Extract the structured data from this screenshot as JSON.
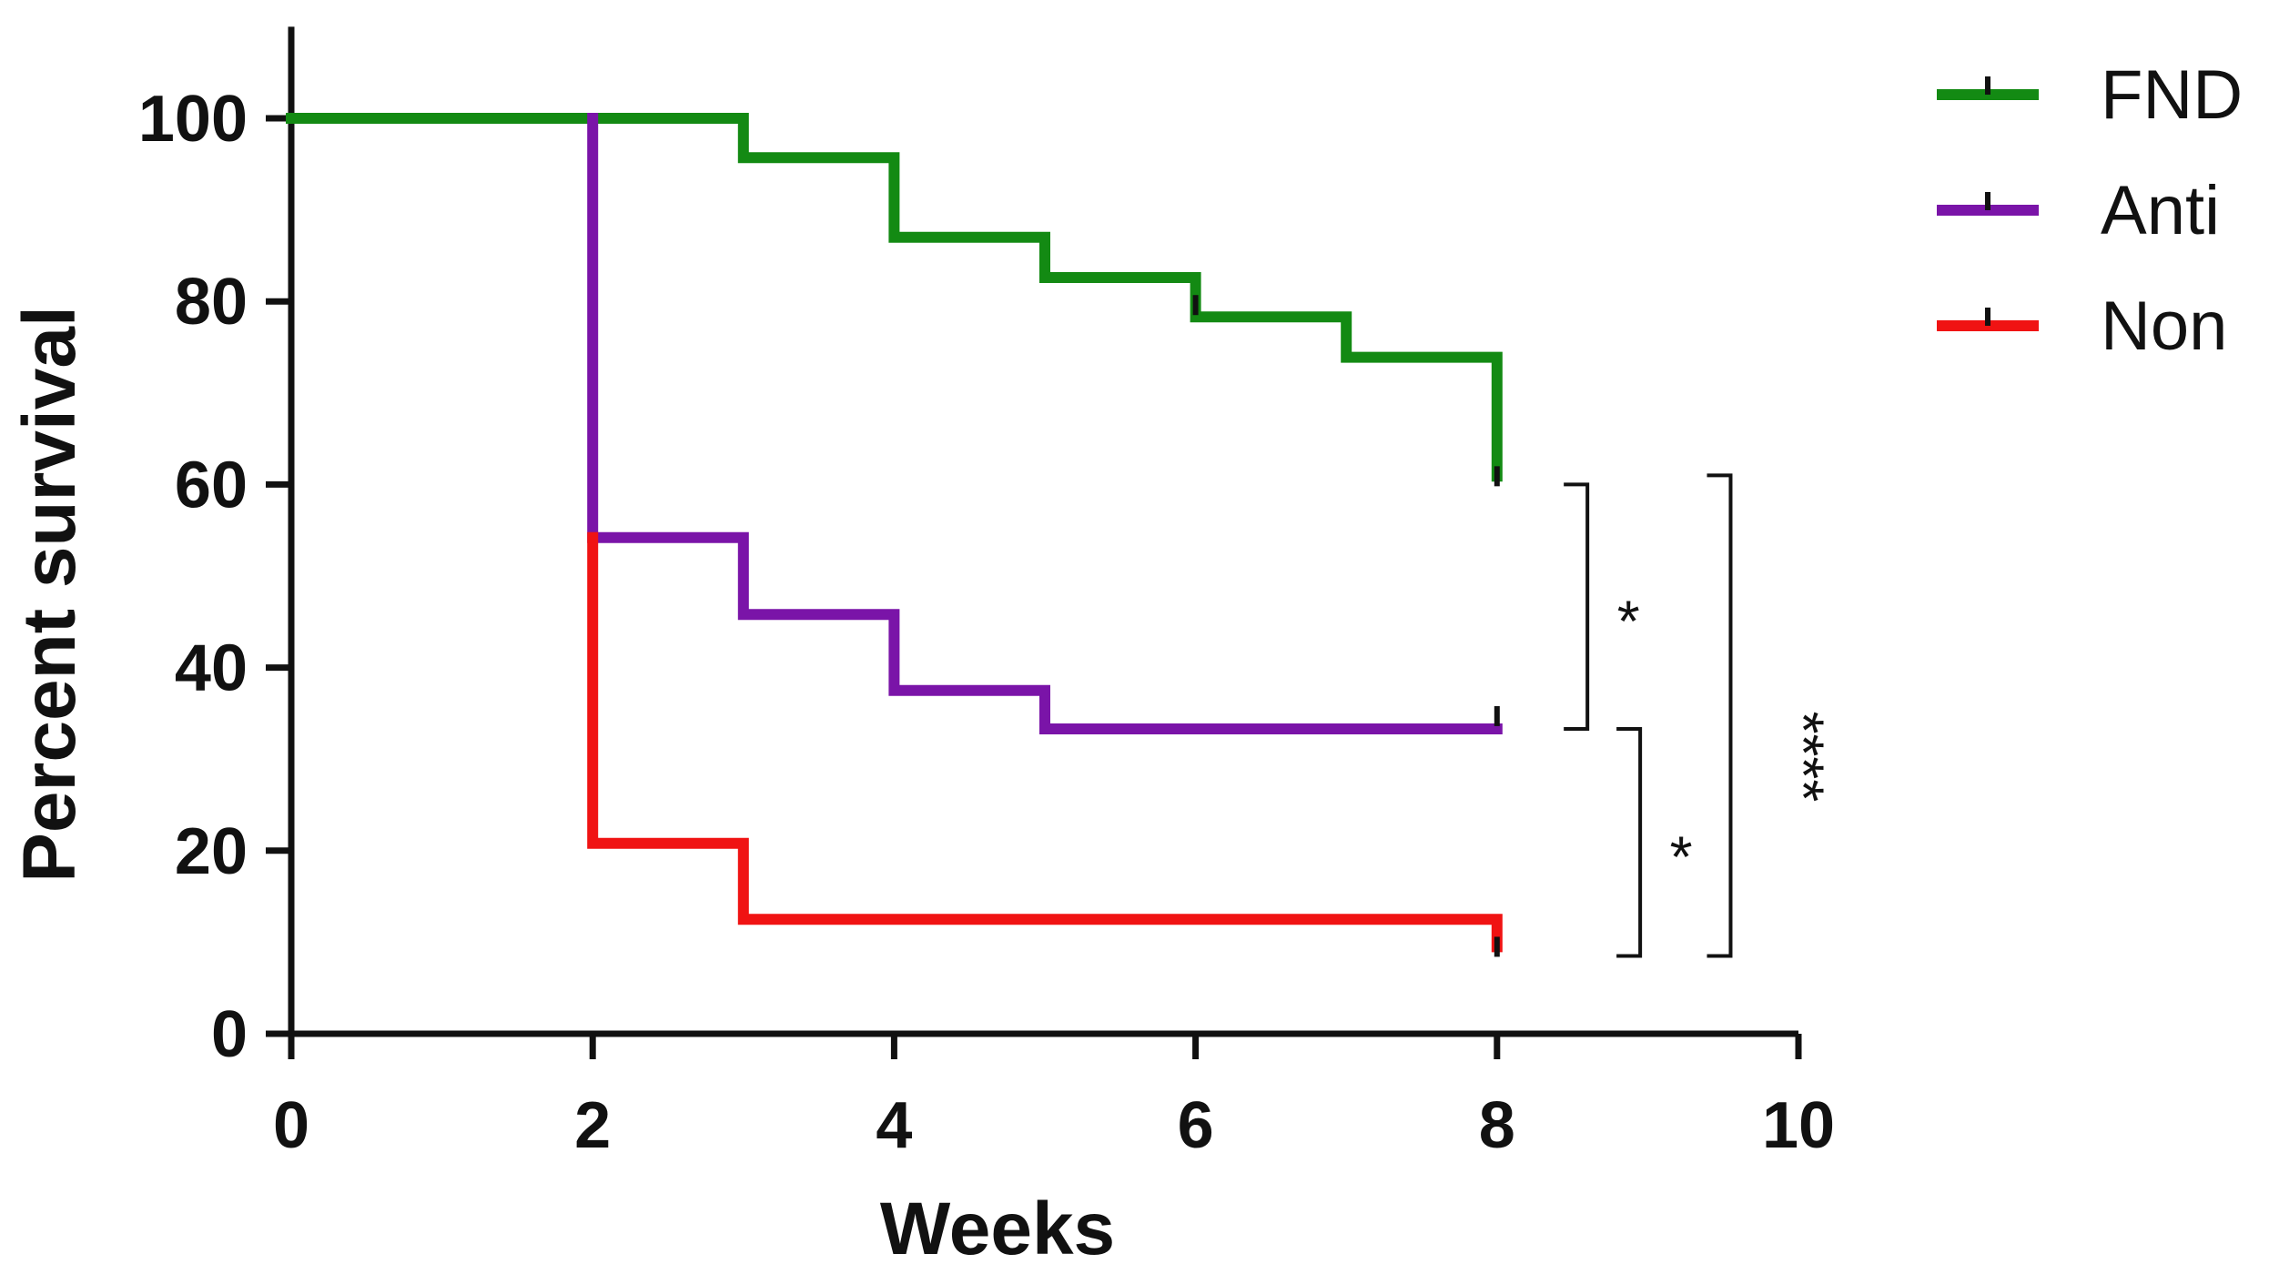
{
  "chart_data": {
    "type": "line",
    "subtype": "kaplan-meier-step",
    "title": "",
    "xlabel": "Weeks",
    "ylabel": "Percent survival",
    "xlim": [
      0,
      10
    ],
    "ylim": [
      0,
      110
    ],
    "x_ticks": [
      0,
      2,
      4,
      6,
      8,
      10
    ],
    "y_ticks": [
      0,
      20,
      40,
      60,
      80,
      100
    ],
    "grid": false,
    "legend_position": "top-right",
    "series": [
      {
        "name": "FND",
        "color": "#138a13",
        "steps": [
          [
            0,
            100
          ],
          [
            3,
            100
          ],
          [
            3,
            95.7
          ],
          [
            4,
            95.7
          ],
          [
            4,
            87
          ],
          [
            5,
            87
          ],
          [
            5,
            82.6
          ],
          [
            6,
            82.6
          ],
          [
            6,
            78.3
          ],
          [
            7,
            78.3
          ],
          [
            7,
            73.9
          ],
          [
            8,
            73.9
          ],
          [
            8,
            60.9
          ]
        ],
        "censored": [
          [
            6,
            79.6
          ],
          [
            8,
            60.9
          ]
        ]
      },
      {
        "name": "Anti",
        "color": "#7a14a8",
        "steps": [
          [
            2,
            100
          ],
          [
            2,
            54.2
          ],
          [
            3,
            54.2
          ],
          [
            3,
            45.8
          ],
          [
            4,
            45.8
          ],
          [
            4,
            37.5
          ],
          [
            5,
            37.5
          ],
          [
            5,
            33.3
          ],
          [
            8,
            33.3
          ]
        ],
        "censored": [
          [
            8,
            34.7
          ]
        ]
      },
      {
        "name": "Non",
        "color": "#f01313",
        "steps": [
          [
            2,
            54.2
          ],
          [
            2,
            20.8
          ],
          [
            3,
            20.8
          ],
          [
            3,
            12.5
          ],
          [
            8,
            12.5
          ],
          [
            8,
            9.5
          ]
        ],
        "censored": [
          [
            8,
            9.5
          ]
        ]
      }
    ],
    "significance": [
      {
        "label": "*",
        "from_y": 60,
        "to_y": 33.3,
        "x": 8.6
      },
      {
        "label": "*",
        "from_y": 33.3,
        "to_y": 8.5,
        "x": 8.95
      },
      {
        "label": "****",
        "from_y": 61,
        "to_y": 8.5,
        "x": 9.55
      }
    ]
  }
}
